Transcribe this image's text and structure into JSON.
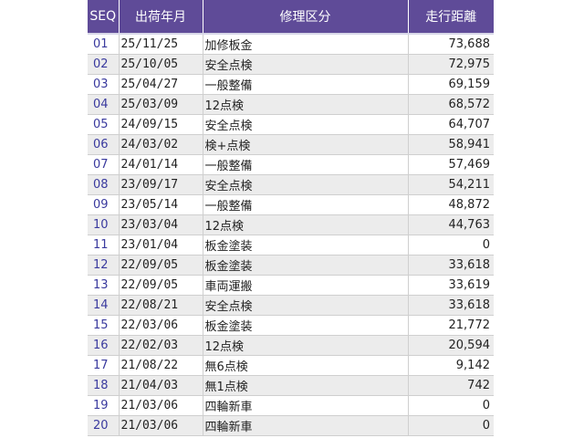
{
  "columns": {
    "seq": "SEQ",
    "date": "出荷年月",
    "repair_type": "修理区分",
    "mileage": "走行距離"
  },
  "rows": [
    {
      "seq": "01",
      "date": "25/11/25",
      "repair_type": "加修板金",
      "mileage": "73,688"
    },
    {
      "seq": "02",
      "date": "25/10/05",
      "repair_type": "安全点検",
      "mileage": "72,975"
    },
    {
      "seq": "03",
      "date": "25/04/27",
      "repair_type": "一般整備",
      "mileage": "69,159"
    },
    {
      "seq": "04",
      "date": "25/03/09",
      "repair_type": "12点検",
      "mileage": "68,572"
    },
    {
      "seq": "05",
      "date": "24/09/15",
      "repair_type": "安全点検",
      "mileage": "64,707"
    },
    {
      "seq": "06",
      "date": "24/03/02",
      "repair_type": "検+点検",
      "mileage": "58,941"
    },
    {
      "seq": "07",
      "date": "24/01/14",
      "repair_type": "一般整備",
      "mileage": "57,469"
    },
    {
      "seq": "08",
      "date": "23/09/17",
      "repair_type": "安全点検",
      "mileage": "54,211"
    },
    {
      "seq": "09",
      "date": "23/05/14",
      "repair_type": "一般整備",
      "mileage": "48,872"
    },
    {
      "seq": "10",
      "date": "23/03/04",
      "repair_type": "12点検",
      "mileage": "44,763"
    },
    {
      "seq": "11",
      "date": "23/01/04",
      "repair_type": "板金塗装",
      "mileage": "0"
    },
    {
      "seq": "12",
      "date": "22/09/05",
      "repair_type": "板金塗装",
      "mileage": "33,618"
    },
    {
      "seq": "13",
      "date": "22/09/05",
      "repair_type": "車両運搬",
      "mileage": "33,619"
    },
    {
      "seq": "14",
      "date": "22/08/21",
      "repair_type": "安全点検",
      "mileage": "33,618"
    },
    {
      "seq": "15",
      "date": "22/03/06",
      "repair_type": "板金塗装",
      "mileage": "21,772"
    },
    {
      "seq": "16",
      "date": "22/02/03",
      "repair_type": "12点検",
      "mileage": "20,594"
    },
    {
      "seq": "17",
      "date": "21/08/22",
      "repair_type": "無6点検",
      "mileage": "9,142"
    },
    {
      "seq": "18",
      "date": "21/04/03",
      "repair_type": "無1点検",
      "mileage": "742"
    },
    {
      "seq": "19",
      "date": "21/03/06",
      "repair_type": "四輪新車",
      "mileage": "0"
    },
    {
      "seq": "20",
      "date": "21/03/06",
      "repair_type": "四輪新車",
      "mileage": "0"
    }
  ],
  "colors": {
    "header_bg": "#5f4b98",
    "header_text": "#ffffff",
    "row_alt_bg": "#ececec",
    "seq_text": "#3a3a9e"
  }
}
